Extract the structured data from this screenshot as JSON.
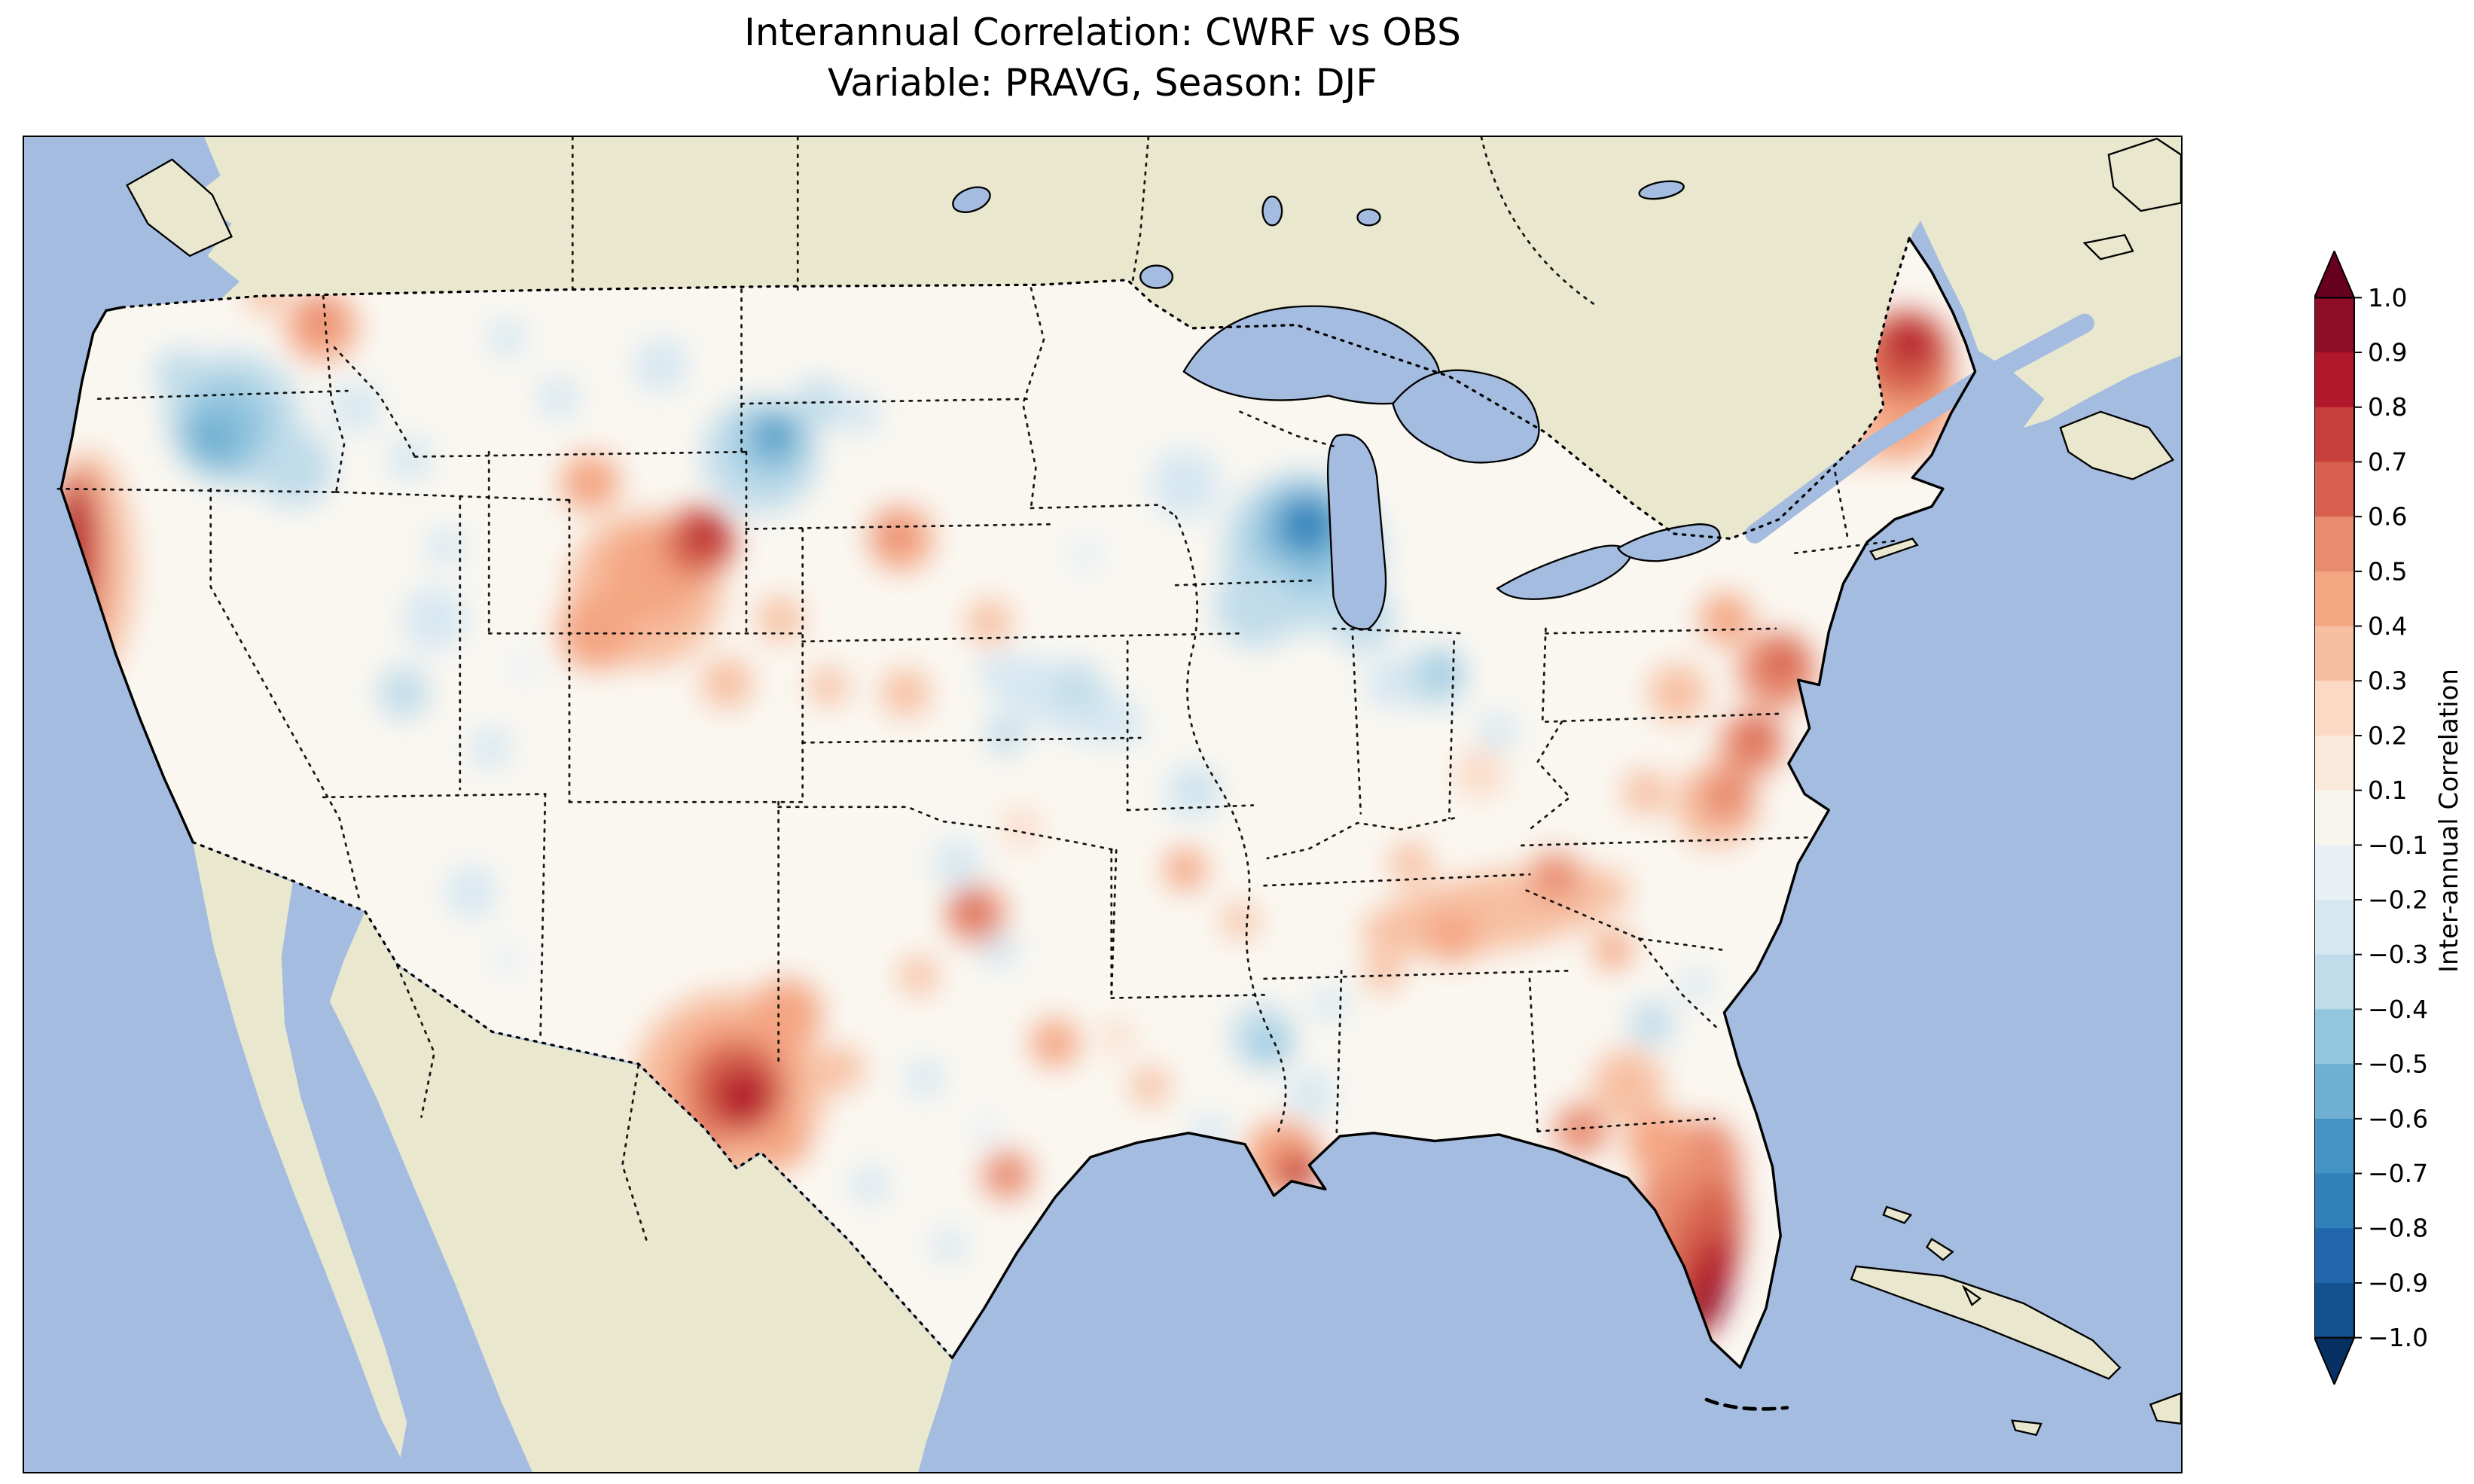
{
  "title": {
    "line1": "Interannual Correlation: CWRF vs OBS",
    "line2": "Variable: PRAVG, Season: DJF"
  },
  "colorbar": {
    "label": "Inter-annual Correlation",
    "ticks": [
      "1.0",
      "0.9",
      "0.8",
      "0.7",
      "0.6",
      "0.5",
      "0.4",
      "0.3",
      "0.2",
      "0.1",
      "−0.1",
      "−0.2",
      "−0.3",
      "−0.4",
      "−0.5",
      "−0.6",
      "−0.7",
      "−0.8",
      "−0.9",
      "−1.0"
    ],
    "band_colors_top_to_bottom": [
      "#8c0d25",
      "#b2182b",
      "#c73f3c",
      "#d6604d",
      "#e88b6f",
      "#f4a582",
      "#f7bfa1",
      "#fbd9c4",
      "#fbe9dc",
      "#f8f5ef",
      "#e8f0f5",
      "#d6e7f1",
      "#c0dcea",
      "#92c5de",
      "#6fb0d2",
      "#4393c3",
      "#3080b9",
      "#2166ac",
      "#14518f"
    ],
    "extend_top_color": "#67001f",
    "extend_bottom_color": "#053061",
    "outline_color": "#000000"
  },
  "map": {
    "ocean_color": "#a3bcdf",
    "land_color": "#eae7cf",
    "us_base_color": "#faf7f1",
    "border_style": "dotted black state and national borders, solid black coastlines",
    "features": [
      "Great Lakes",
      "Vancouver Island",
      "Nova Scotia",
      "Newfoundland",
      "St. Lawrence River",
      "Baja California",
      "Gulf of California",
      "Cuba",
      "Bahamas",
      "Florida Keys",
      "Long Island"
    ]
  },
  "chart_data": {
    "type": "heatmap",
    "title": "Interannual Correlation: CWRF vs OBS",
    "subtitle": "Variable: PRAVG, Season: DJF",
    "colorbar_label": "Inter-annual Correlation",
    "colormap": "RdBu_r diverging (blue = negative, red = positive)",
    "levels": [
      -1.0,
      -0.9,
      -0.8,
      -0.7,
      -0.6,
      -0.5,
      -0.4,
      -0.3,
      -0.2,
      -0.1,
      0.1,
      0.2,
      0.3,
      0.4,
      0.5,
      0.6,
      0.7,
      0.8,
      0.9,
      1.0
    ],
    "extend": "both",
    "basemap": "Continental United States; data masked outside the US; surrounding ocean blue, non-US land beige; dotted state borders",
    "legend_position": "right vertical colorbar with triangular over/under arrows",
    "regions_estimated": [
      {
        "region": "South Florida peninsula",
        "correlation": 0.9
      },
      {
        "region": "New Mexico / West Texas",
        "correlation": 0.8
      },
      {
        "region": "Coastal northern California",
        "correlation": 0.7
      },
      {
        "region": "Maine / northern New England",
        "correlation": 0.7
      },
      {
        "region": "Southern Wyoming / Colorado Rockies",
        "correlation": 0.6
      },
      {
        "region": "Louisiana coast",
        "correlation": 0.6
      },
      {
        "region": "Mid-Atlantic (VA / PA / NY)",
        "correlation": 0.5
      },
      {
        "region": "Tennessee valley band",
        "correlation": 0.4
      },
      {
        "region": "North-central Washington",
        "correlation": 0.4
      },
      {
        "region": "Central Great Plains",
        "correlation": 0.0
      },
      {
        "region": "Great Basin (Nevada / Utah)",
        "correlation": -0.2
      },
      {
        "region": "Iowa / Nebraska",
        "correlation": -0.3
      },
      {
        "region": "Lower Mississippi valley",
        "correlation": -0.3
      },
      {
        "region": "Pacific Northwest interior",
        "correlation": -0.5
      },
      {
        "region": "NE Wyoming / SE Montana",
        "correlation": -0.6
      },
      {
        "region": "Wisconsin / Lake Michigan",
        "correlation": -0.6
      }
    ]
  }
}
